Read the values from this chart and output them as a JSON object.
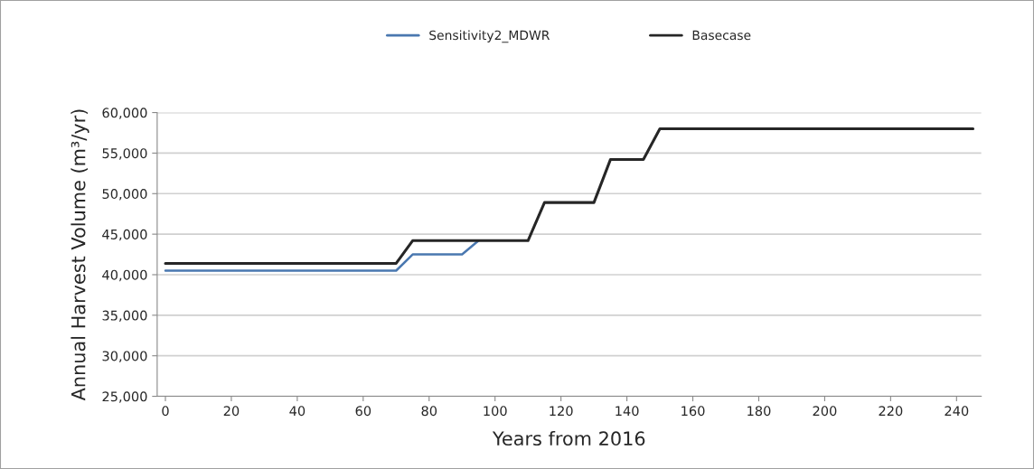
{
  "chart_data": {
    "type": "line",
    "xlabel": "Years from 2016",
    "ylabel": "Annual Harvest Volume (m³/yr)",
    "series": [
      {
        "name": "Sensitivity2_MDWR",
        "color": "#4a78b0",
        "x": [
          0,
          70,
          75,
          90,
          95
        ],
        "values": [
          40500,
          40500,
          42500,
          42500,
          44200
        ]
      },
      {
        "name": "Basecase",
        "color": "#262626",
        "x": [
          0,
          70,
          75,
          110,
          115,
          130,
          135,
          145,
          150,
          245
        ],
        "values": [
          41400,
          41400,
          44200,
          44200,
          48900,
          48900,
          54200,
          54200,
          58000,
          58000
        ]
      }
    ],
    "xlim": [
      -2.5,
      247.5
    ],
    "xticks": [
      0,
      20,
      40,
      60,
      80,
      100,
      120,
      140,
      160,
      180,
      200,
      220,
      240
    ],
    "ylim": [
      25000,
      60000
    ],
    "yticks": [
      {
        "value": 25000,
        "label": "25,000"
      },
      {
        "value": 30000,
        "label": "30,000"
      },
      {
        "value": 35000,
        "label": "35,000"
      },
      {
        "value": 40000,
        "label": "40,000"
      },
      {
        "value": 45000,
        "label": "45,000"
      },
      {
        "value": 50000,
        "label": "50,000"
      },
      {
        "value": 55000,
        "label": "55,000"
      },
      {
        "value": 60000,
        "label": "60,000"
      }
    ],
    "grid": "y",
    "legend": "top",
    "marker": "none",
    "line_style": "solid"
  }
}
